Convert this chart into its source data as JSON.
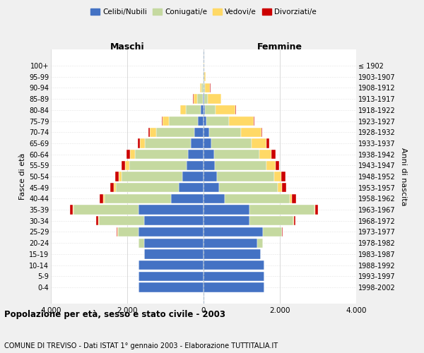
{
  "age_groups": [
    "0-4",
    "5-9",
    "10-14",
    "15-19",
    "20-24",
    "25-29",
    "30-34",
    "35-39",
    "40-44",
    "45-49",
    "50-54",
    "55-59",
    "60-64",
    "65-69",
    "70-74",
    "75-79",
    "80-84",
    "85-89",
    "90-94",
    "95-99",
    "100+"
  ],
  "birth_years": [
    "1998-2002",
    "1993-1997",
    "1988-1992",
    "1983-1987",
    "1978-1982",
    "1973-1977",
    "1968-1972",
    "1963-1967",
    "1958-1962",
    "1953-1957",
    "1948-1952",
    "1943-1947",
    "1938-1942",
    "1933-1937",
    "1928-1932",
    "1923-1927",
    "1918-1922",
    "1913-1917",
    "1908-1912",
    "1903-1907",
    "≤ 1902"
  ],
  "colors": {
    "celibi": "#4472C4",
    "coniugati": "#c5d9a0",
    "vedovi": "#ffd966",
    "divorziati": "#cc0000"
  },
  "maschi": {
    "celibi": [
      1700,
      1700,
      1700,
      1550,
      1550,
      1700,
      1550,
      1700,
      850,
      650,
      550,
      450,
      400,
      330,
      250,
      150,
      70,
      25,
      8,
      3,
      2
    ],
    "coniugati": [
      0,
      0,
      0,
      0,
      150,
      550,
      1200,
      1700,
      1750,
      1650,
      1600,
      1500,
      1400,
      1200,
      1000,
      750,
      400,
      150,
      45,
      12,
      3
    ],
    "vedovi": [
      0,
      0,
      0,
      0,
      0,
      5,
      10,
      20,
      30,
      50,
      80,
      100,
      120,
      140,
      160,
      180,
      140,
      90,
      35,
      10,
      3
    ],
    "divorziati": [
      0,
      0,
      0,
      0,
      5,
      20,
      60,
      80,
      100,
      90,
      90,
      90,
      90,
      60,
      40,
      20,
      10,
      5,
      2,
      1,
      0
    ]
  },
  "femmine": {
    "celibi": [
      1600,
      1600,
      1600,
      1500,
      1400,
      1550,
      1200,
      1200,
      550,
      400,
      350,
      300,
      270,
      200,
      140,
      80,
      40,
      15,
      5,
      2,
      1
    ],
    "coniugati": [
      0,
      0,
      0,
      0,
      150,
      500,
      1150,
      1700,
      1700,
      1550,
      1500,
      1350,
      1200,
      1050,
      850,
      580,
      280,
      100,
      30,
      8,
      2
    ],
    "vedovi": [
      0,
      0,
      0,
      0,
      0,
      5,
      15,
      20,
      60,
      110,
      180,
      230,
      310,
      400,
      520,
      650,
      520,
      350,
      140,
      45,
      12
    ],
    "divorziati": [
      0,
      0,
      0,
      0,
      5,
      20,
      50,
      80,
      110,
      110,
      110,
      100,
      100,
      70,
      35,
      20,
      10,
      5,
      2,
      1,
      0
    ]
  },
  "xlim": 4000,
  "xticks": [
    -4000,
    -2000,
    0,
    2000,
    4000
  ],
  "xticklabels": [
    "4.000",
    "2.000",
    "0",
    "2.000",
    "4.000"
  ],
  "title_main": "Popolazione per età, sesso e stato civile - 2003",
  "title_sub": "COMUNE DI TREVISO - Dati ISTAT 1° gennaio 2003 - Elaborazione TUTTITALIA.IT",
  "ylabel_left": "Fasce di età",
  "ylabel_right": "Anni di nascita",
  "label_maschi": "Maschi",
  "label_femmine": "Femmine",
  "legend_labels": [
    "Celibi/Nubili",
    "Coniugati/e",
    "Vedovi/e",
    "Divorziati/e"
  ],
  "bg_color": "#f0f0f0",
  "plot_bg": "#ffffff"
}
